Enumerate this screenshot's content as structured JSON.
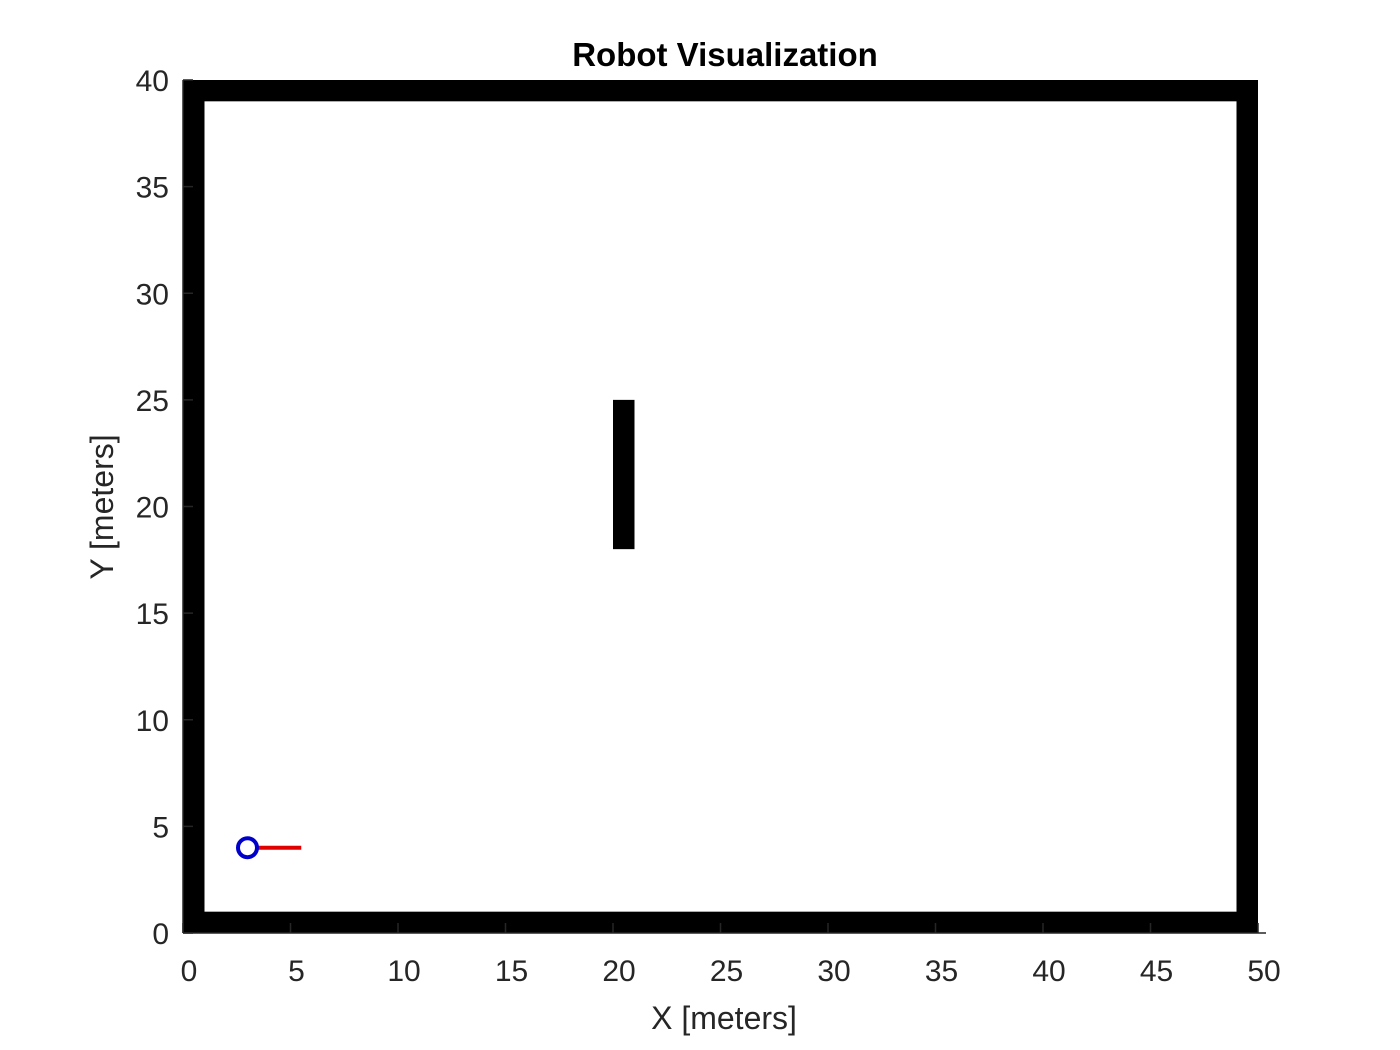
{
  "chart_data": {
    "type": "map",
    "title": "Robot Visualization",
    "xlabel": "X [meters]",
    "ylabel": "Y [meters]",
    "xlim": [
      0,
      50
    ],
    "ylim": [
      0,
      40
    ],
    "xticks": [
      0,
      5,
      10,
      15,
      20,
      25,
      30,
      35,
      40,
      45,
      50
    ],
    "yticks": [
      0,
      5,
      10,
      15,
      20,
      25,
      30,
      35,
      40
    ],
    "xtick_labels": [
      "0",
      "5",
      "10",
      "15",
      "20",
      "25",
      "30",
      "35",
      "40",
      "45",
      "50"
    ],
    "ytick_labels": [
      "0",
      "5",
      "10",
      "15",
      "20",
      "25",
      "30",
      "35",
      "40"
    ],
    "grid": false,
    "obstacles": [
      {
        "name": "wall-left",
        "x": [
          0,
          1
        ],
        "y": [
          0,
          40
        ]
      },
      {
        "name": "wall-right",
        "x": [
          49,
          50
        ],
        "y": [
          0,
          40
        ]
      },
      {
        "name": "wall-bottom",
        "x": [
          0,
          50
        ],
        "y": [
          0,
          1
        ]
      },
      {
        "name": "wall-top",
        "x": [
          0,
          50
        ],
        "y": [
          39,
          40
        ]
      },
      {
        "name": "inner-obstacle",
        "x": [
          20,
          21
        ],
        "y": [
          18,
          25
        ]
      }
    ],
    "robot": {
      "x": 3,
      "y": 4,
      "heading_deg": 0,
      "heading_length": 2.5,
      "body_color": "#0000CC",
      "heading_color": "#E00000"
    },
    "obstacle_color": "#000000",
    "axis_color": "#262626"
  }
}
